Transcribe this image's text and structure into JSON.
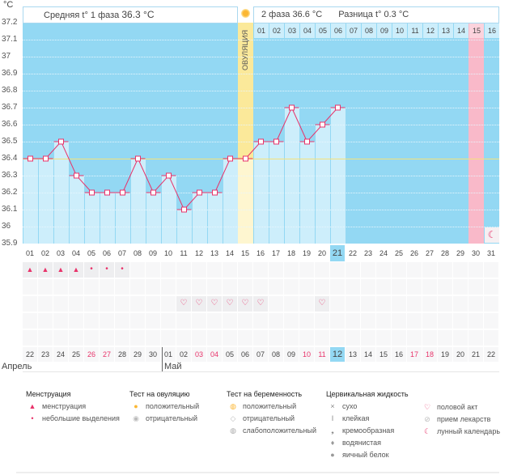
{
  "chart_data": {
    "type": "line",
    "unit": "°C",
    "ylim": [
      35.9,
      37.2
    ],
    "yticks": [
      "37.2",
      "37.1",
      "37",
      "36.9",
      "36.8",
      "36.7",
      "36.6",
      "36.5",
      "36.4",
      "36.3",
      "36.2",
      "36.1",
      "36",
      "35.9"
    ],
    "cycle_days": [
      "01",
      "02",
      "03",
      "04",
      "05",
      "06",
      "07",
      "08",
      "09",
      "10",
      "11",
      "12",
      "13",
      "14",
      "15",
      "16",
      "17",
      "18",
      "19",
      "20",
      "21",
      "22",
      "23",
      "24",
      "25",
      "26",
      "27",
      "28",
      "29",
      "30",
      "31"
    ],
    "temperatures": [
      36.4,
      36.4,
      36.5,
      36.3,
      36.2,
      36.2,
      36.2,
      36.4,
      36.2,
      36.3,
      36.1,
      36.2,
      36.2,
      36.4,
      36.4,
      36.5,
      36.5,
      36.7,
      36.5,
      36.6,
      36.7
    ],
    "cover_line": 36.4,
    "ovulation_day": 15,
    "ovulation_label": "ОВУЛЯЦИЯ",
    "current_day": 21,
    "phase2_days": [
      "01",
      "02",
      "03",
      "04",
      "05",
      "06",
      "07",
      "08",
      "09",
      "10",
      "11",
      "12",
      "13",
      "14",
      "15",
      "16"
    ],
    "highlight_phase2_day": 15,
    "phase1_text": "Средняя t° 1 фаза",
    "phase1_value": "36.3 °C",
    "phase2_text": "2 фаза",
    "phase2_value": "36.6 °C",
    "diff_text": "Разница t°",
    "diff_value": "0.3 °C",
    "menstruation": [
      "heavy",
      "heavy",
      "heavy",
      "heavy",
      "light",
      "light",
      "light"
    ],
    "intercourse_days": [
      11,
      12,
      13,
      14,
      15,
      16,
      20
    ],
    "moon_day": 31,
    "calendar_dates": [
      "22",
      "23",
      "24",
      "25",
      "26",
      "27",
      "28",
      "29",
      "30",
      "01",
      "02",
      "03",
      "04",
      "05",
      "06",
      "07",
      "08",
      "09",
      "10",
      "11",
      "12",
      "13",
      "14",
      "15",
      "16",
      "17",
      "18",
      "19",
      "20",
      "21",
      "22"
    ],
    "weekend_dates_idx": [
      4,
      5,
      11,
      12,
      18,
      19,
      25,
      26
    ],
    "months": [
      "Апрель",
      "Май"
    ],
    "colors": {
      "dark": "#93d8f3",
      "light": "#cdeefb",
      "line": "#e8336a",
      "ovulation": "#fbe99a",
      "cover": "#f5e27a",
      "pink": "#f9b9c9"
    }
  },
  "legend": [
    {
      "title": "Менструация",
      "items": [
        {
          "icon": "blood-drop-icon",
          "label": "менструация"
        },
        {
          "icon": "small-drop-icon",
          "label": "небольшие выделения"
        }
      ]
    },
    {
      "title": "Тест на овуляцию",
      "items": [
        {
          "icon": "sun-positive-icon",
          "label": "положительный"
        },
        {
          "icon": "sun-negative-icon",
          "label": "отрицательный"
        }
      ]
    },
    {
      "title": "Тест на беременность",
      "items": [
        {
          "icon": "test-positive-icon",
          "label": "положительный"
        },
        {
          "icon": "test-negative-icon",
          "label": "отрицательный"
        },
        {
          "icon": "test-weak-icon",
          "label": "слабоположительный"
        }
      ]
    },
    {
      "title": "Цервикальная жидкость",
      "items": [
        {
          "icon": "dry-icon",
          "label": "сухо"
        },
        {
          "icon": "sticky-icon",
          "label": "клейкая"
        },
        {
          "icon": "creamy-icon",
          "label": "кремообразная"
        },
        {
          "icon": "watery-icon",
          "label": "водянистая"
        },
        {
          "icon": "eggwhite-icon",
          "label": "яичный белок"
        }
      ]
    },
    {
      "title": "",
      "items": [
        {
          "icon": "heart-icon",
          "label": "половой акт"
        },
        {
          "icon": "pill-icon",
          "label": "прием лекарств"
        },
        {
          "icon": "moon-icon",
          "label": "лунный календарь"
        }
      ]
    }
  ]
}
